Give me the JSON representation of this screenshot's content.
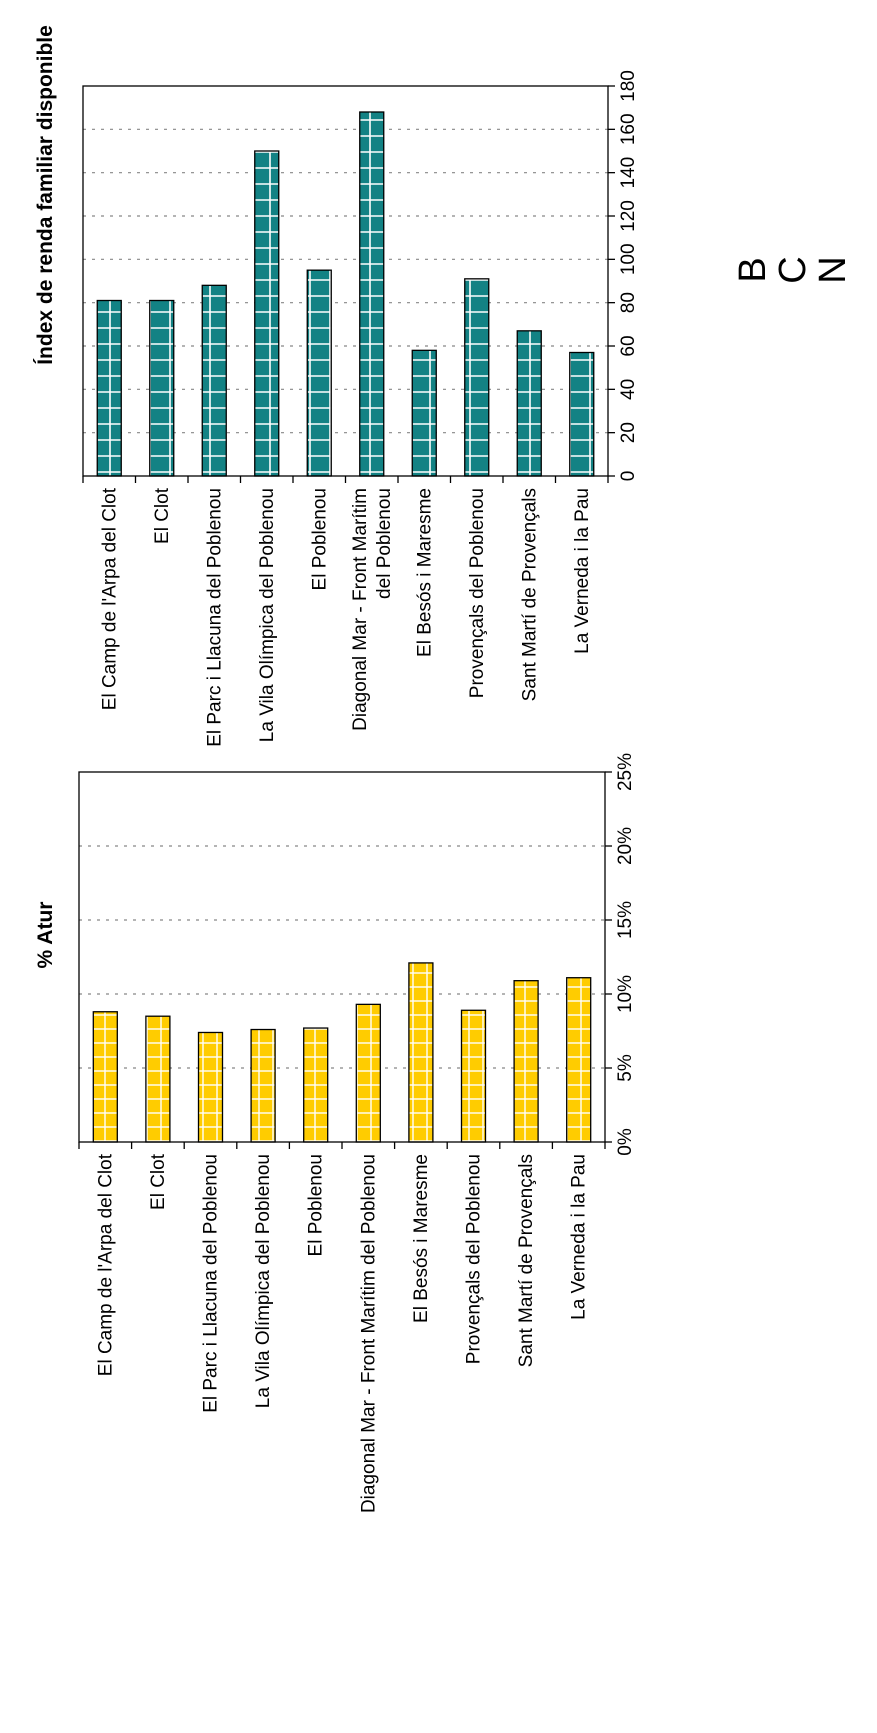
{
  "chart_data": [
    {
      "type": "bar",
      "title": "Índex de renda familiar disponible",
      "categories": [
        "El Camp de l'Arpa del Clot",
        "El Clot",
        "El Parc i Llacuna del Poblenou",
        "La Vila Olímpica del Poblenou",
        "El Poblenou",
        "Diagonal Mar - Front Marítim del Poblenou",
        "El Besós i Maresme",
        "Provençals del Poblenou",
        "Sant Martí de Provençals",
        "La Verneda i la Pau"
      ],
      "values": [
        81,
        81,
        88,
        150,
        95,
        168,
        58,
        91,
        67,
        57
      ],
      "ylim": [
        0,
        180
      ],
      "ticks": [
        "0",
        "20",
        "40",
        "60",
        "80",
        "100",
        "120",
        "140",
        "160",
        "180"
      ],
      "grid": true,
      "bar_color": "#138284"
    },
    {
      "type": "bar",
      "title": "% Atur",
      "categories": [
        "El Camp de l'Arpa del Clot",
        "El Clot",
        "El Parc i Llacuna del Poblenou",
        "La Vila Olímpica del Poblenou",
        "El Poblenou",
        "Diagonal Mar - Front Marítim del Poblenou",
        "El Besós i Maresme",
        "Provençals del Poblenou",
        "Sant Martí de Provençals",
        "La Verneda i la Pau"
      ],
      "values": [
        8.8,
        8.5,
        7.4,
        7.6,
        7.7,
        9.3,
        12.1,
        8.9,
        10.9,
        11.1
      ],
      "ylim": [
        0,
        25
      ],
      "ticks": [
        "0%",
        "5%",
        "10%",
        "15%",
        "20%",
        "25%"
      ],
      "grid": true,
      "bar_color": "#ffcc00"
    }
  ],
  "side_letters": [
    "B",
    "C",
    "N"
  ]
}
